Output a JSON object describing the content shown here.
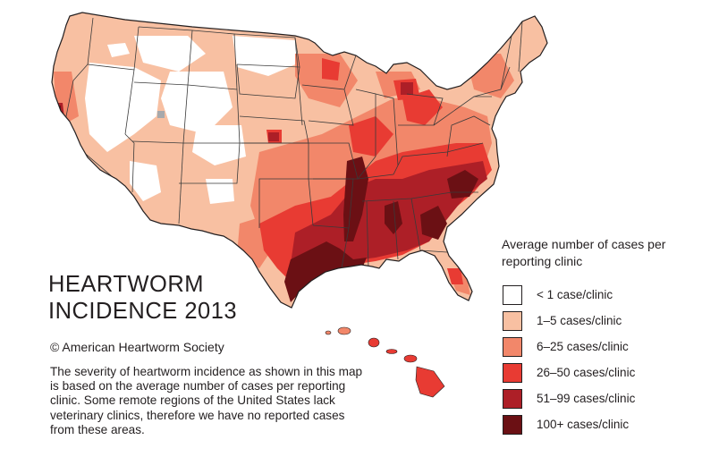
{
  "title_line1": "HEARTWORM",
  "title_line2": "INCIDENCE 2013",
  "copyright": "© American Heartworm Society",
  "description": "The severity of heartworm incidence as shown in this map is based on the average number of cases per reporting clinic. Some remote regions of the United States lack veterinary clinics, therefore we have no reported cases from these areas.",
  "legend": {
    "title": "Average number of cases per reporting clinic",
    "items": [
      {
        "label": "< 1 case/clinic",
        "color": "#ffffff"
      },
      {
        "label": "1–5 cases/clinic",
        "color": "#f8c0a2"
      },
      {
        "label": "6–25 cases/clinic",
        "color": "#f2876a"
      },
      {
        "label": "26–50 cases/clinic",
        "color": "#e83b33"
      },
      {
        "label": "51–99 cases/clinic",
        "color": "#ad1f27"
      },
      {
        "label": "100+ cases/clinic",
        "color": "#6b1014"
      }
    ]
  },
  "colors": {
    "border": "#231f20",
    "state_line": "#3a3a3a",
    "no_data_gray": "#a7a9ac"
  },
  "map_regions": [
    "contiguous-us",
    "alaska-omitted",
    "hawaii"
  ]
}
